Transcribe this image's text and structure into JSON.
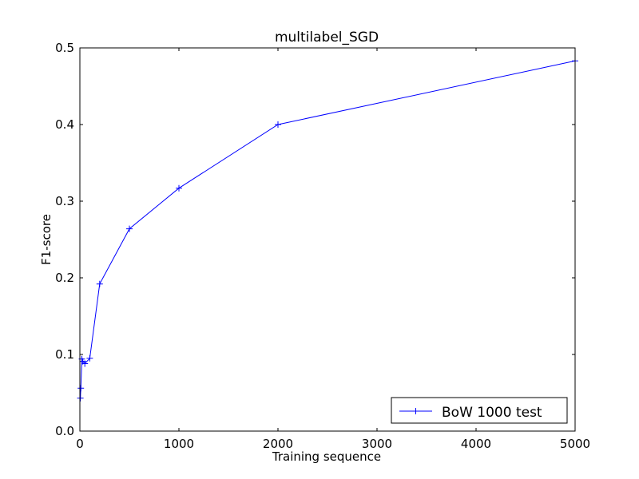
{
  "chart_data": {
    "type": "line",
    "title": "multilabel_SGD",
    "xlabel": "Training sequence",
    "ylabel": "F1-score",
    "xlim": [
      0,
      5000
    ],
    "ylim": [
      0,
      0.5
    ],
    "xticks": [
      0,
      1000,
      2000,
      3000,
      4000,
      5000
    ],
    "xtick_labels": [
      "0",
      "1000",
      "2000",
      "3000",
      "4000",
      "5000"
    ],
    "yticks": [
      0,
      0.1,
      0.2,
      0.3,
      0.4,
      0.5
    ],
    "ytick_labels": [
      "0.0",
      "0.1",
      "0.2",
      "0.3",
      "0.4",
      "0.5"
    ],
    "grid": false,
    "legend_position": "lower-right",
    "series": [
      {
        "name": "BoW 1000 test",
        "color": "#0000ff",
        "marker": "+",
        "x": [
          5,
          10,
          20,
          30,
          50,
          100,
          200,
          500,
          1000,
          2000,
          5000
        ],
        "y": [
          0.043,
          0.056,
          0.094,
          0.091,
          0.088,
          0.095,
          0.192,
          0.264,
          0.317,
          0.4,
          0.483
        ]
      }
    ]
  }
}
